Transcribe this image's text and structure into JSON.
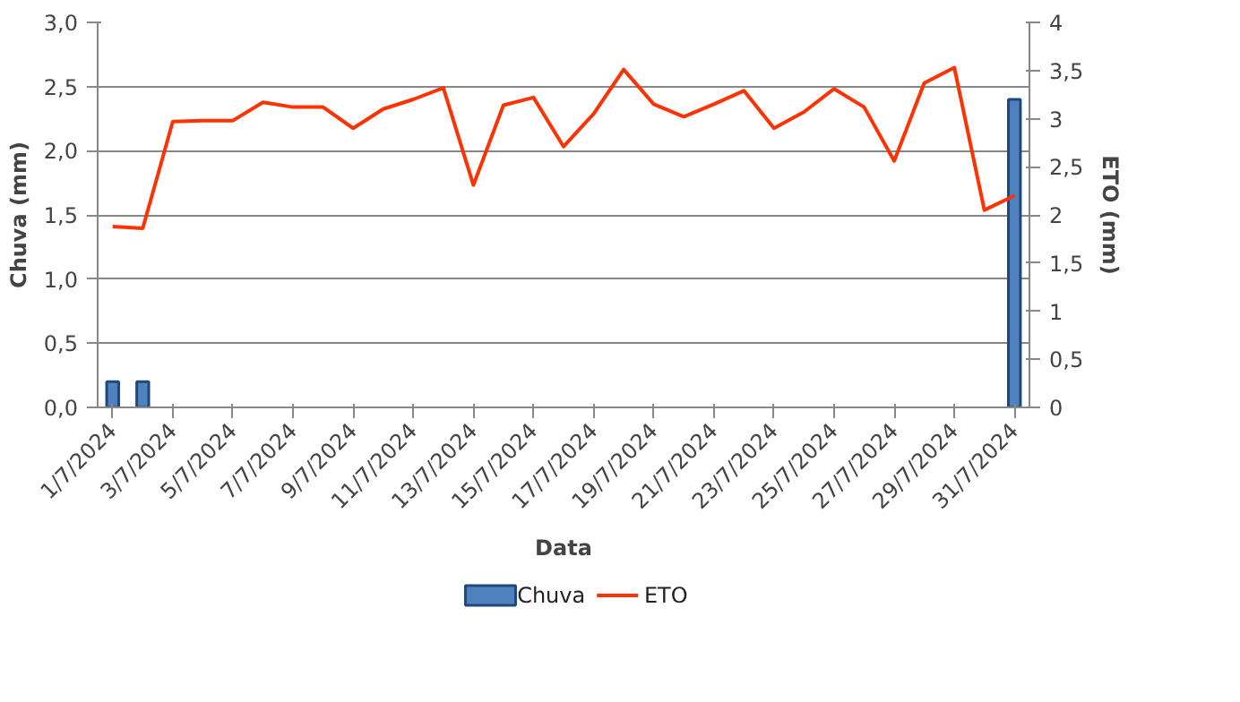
{
  "chart_data": {
    "type": "bar",
    "xlabel": "Data",
    "ylabel": "Chuva (mm)",
    "y2label": "ETO (mm)",
    "categories": [
      "1/7/2024",
      null,
      "3/7/2024",
      null,
      "5/7/2024",
      null,
      "7/7/2024",
      null,
      "9/7/2024",
      null,
      "11/7/2024",
      null,
      "13/7/2024",
      null,
      "15/7/2024",
      null,
      "17/7/2024",
      null,
      "19/7/2024",
      null,
      "21/7/2024",
      null,
      "23/7/2024",
      null,
      "25/7/2024",
      null,
      "27/7/2024",
      null,
      "29/7/2024",
      null,
      "31/7/2024"
    ],
    "series": [
      {
        "name": "Chuva",
        "color": "#4f81bd",
        "values": [
          0.2,
          0.2,
          0,
          0,
          0,
          0,
          0,
          0,
          0,
          0,
          0,
          0,
          0,
          0,
          0,
          0,
          0,
          0,
          0,
          0,
          0,
          0,
          0,
          0,
          0,
          0,
          0,
          0,
          0,
          0,
          2.4
        ]
      },
      {
        "name": "ETO",
        "type": "line",
        "axis": "y2",
        "color": "#ff3300",
        "values": [
          1.88,
          1.86,
          2.97,
          2.98,
          2.98,
          3.17,
          3.12,
          3.12,
          2.9,
          3.1,
          3.2,
          3.32,
          2.31,
          3.14,
          3.22,
          2.71,
          3.05,
          3.51,
          3.15,
          3.02,
          3.15,
          3.29,
          2.9,
          3.07,
          3.31,
          3.12,
          2.56,
          3.37,
          3.53,
          2.05,
          2.2
        ]
      }
    ],
    "ylim": [
      0,
      3
    ],
    "yticks": [
      {
        "value": 0,
        "label": "0,0"
      },
      {
        "value": 0.5,
        "label": "0,5"
      },
      {
        "value": 1,
        "label": "1,0"
      },
      {
        "value": 1.5,
        "label": "1,5"
      },
      {
        "value": 2,
        "label": "2,0"
      },
      {
        "value": 2.5,
        "label": "2,5"
      },
      {
        "value": 3,
        "label": "3,0"
      }
    ],
    "y2lim": [
      0,
      4
    ],
    "y2ticks": [
      0,
      {
        "value": 0.5,
        "label": "0,5"
      },
      1,
      {
        "value": 1.5,
        "label": "1,5"
      },
      2,
      {
        "value": 2.5,
        "label": "2,5"
      },
      3,
      {
        "value": 3.5,
        "label": "3,5"
      },
      4
    ],
    "grid": "y",
    "legend": "bottom"
  }
}
